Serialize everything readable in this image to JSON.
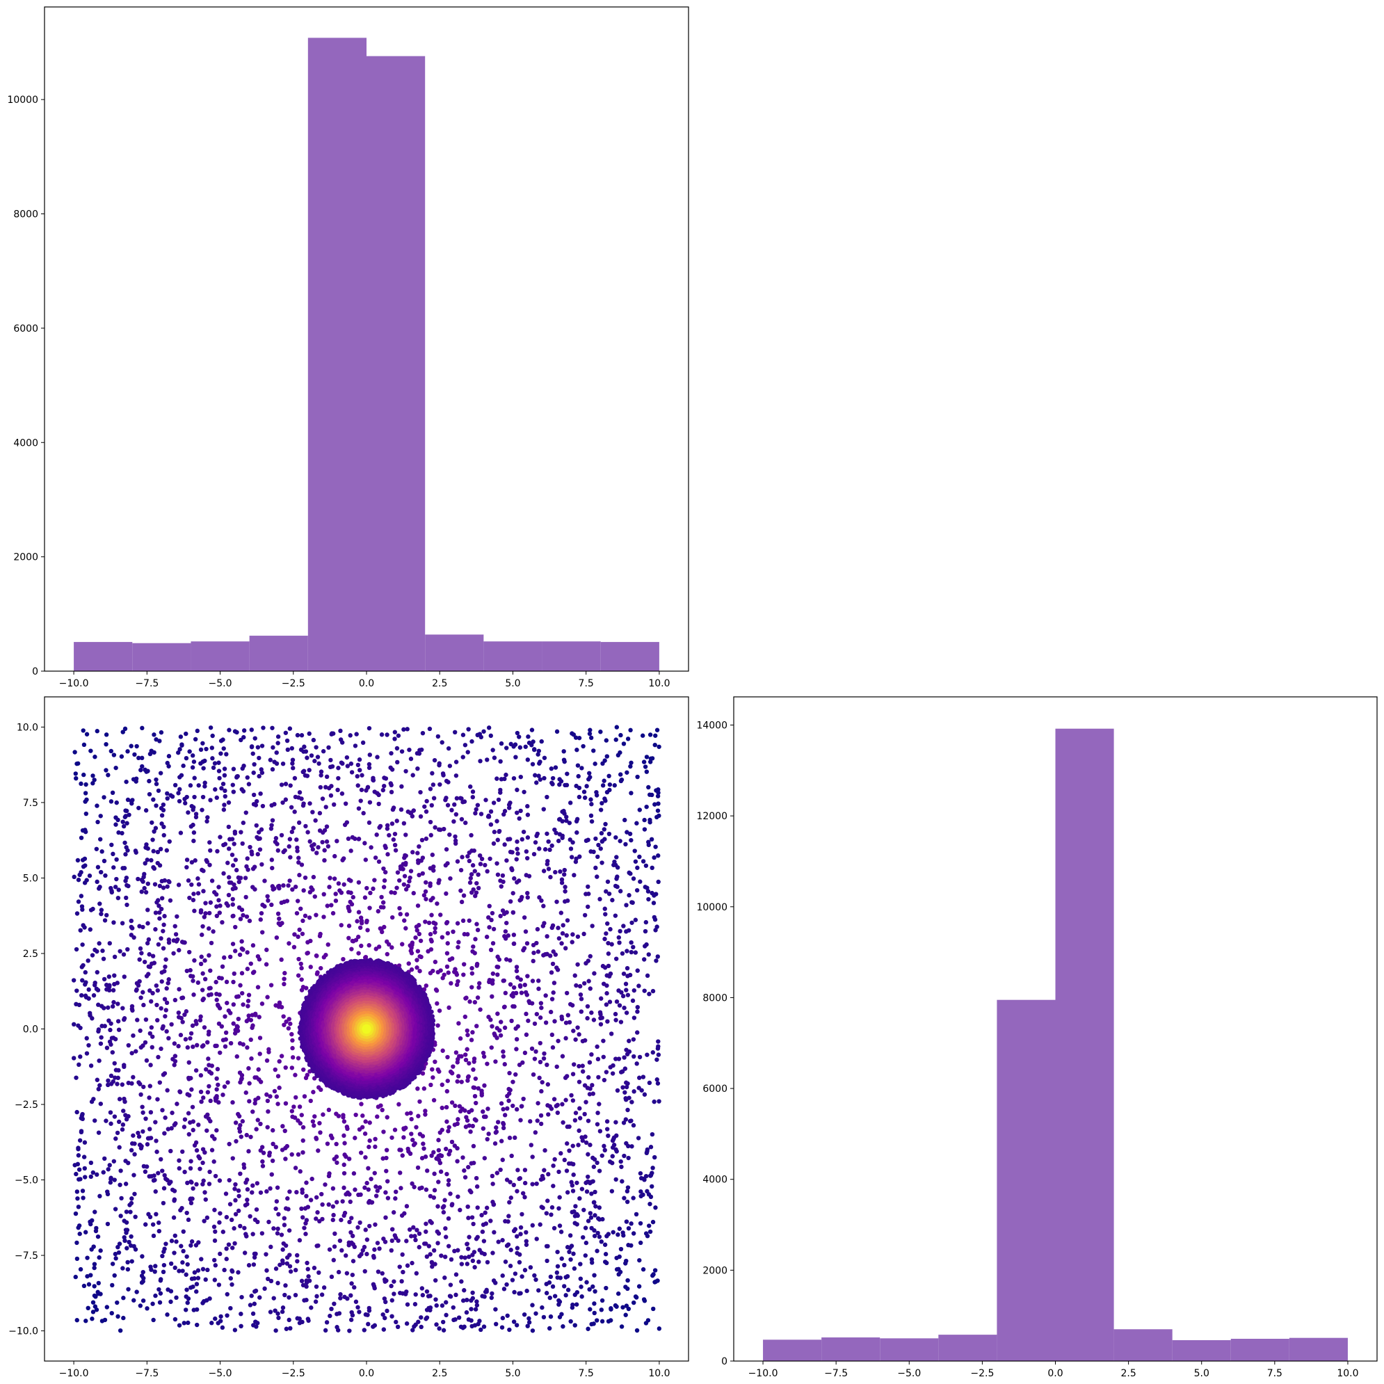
{
  "colors": {
    "bar": "#9467bd",
    "axis": "#000000"
  },
  "chart_data": [
    {
      "type": "bar",
      "panel": "top-left",
      "title": "",
      "xlabel": "",
      "ylabel": "",
      "bin_edges": [
        -10,
        -8,
        -6,
        -4,
        -2,
        0,
        2,
        4,
        6,
        8,
        10
      ],
      "values": [
        510,
        490,
        520,
        620,
        11080,
        10760,
        640,
        520,
        520,
        510
      ],
      "xlim": [
        -11,
        11
      ],
      "ylim": [
        0,
        11620
      ],
      "xticks": [
        -10,
        -7.5,
        -5,
        -2.5,
        0,
        2.5,
        5,
        7.5,
        10
      ],
      "xtick_labels": [
        "−10.0",
        "−7.5",
        "−5.0",
        "−2.5",
        "0.0",
        "2.5",
        "5.0",
        "7.5",
        "10.0"
      ],
      "yticks": [
        0,
        2000,
        4000,
        6000,
        8000,
        10000
      ],
      "ytick_labels": [
        "0",
        "2000",
        "4000",
        "6000",
        "8000",
        "10000"
      ]
    },
    {
      "type": "scatter",
      "panel": "bottom-left",
      "title": "",
      "xlabel": "",
      "ylabel": "",
      "colormap": "plasma",
      "uniform_points": {
        "count": 4000,
        "x_range": [
          -10,
          10
        ],
        "y_range": [
          -10,
          10
        ]
      },
      "cluster": {
        "center": [
          0,
          0
        ],
        "radius": 2.3
      },
      "xlim": [
        -11,
        11
      ],
      "ylim": [
        -11,
        11
      ],
      "xticks": [
        -10,
        -7.5,
        -5,
        -2.5,
        0,
        2.5,
        5,
        7.5,
        10
      ],
      "xtick_labels": [
        "−10.0",
        "−7.5",
        "−5.0",
        "−2.5",
        "0.0",
        "2.5",
        "5.0",
        "7.5",
        "10.0"
      ],
      "yticks": [
        -10,
        -7.5,
        -5,
        -2.5,
        0,
        2.5,
        5,
        7.5,
        10
      ],
      "ytick_labels": [
        "−10.0",
        "−7.5",
        "−5.0",
        "−2.5",
        "0.0",
        "2.5",
        "5.0",
        "7.5",
        "10.0"
      ]
    },
    {
      "type": "bar",
      "panel": "bottom-right",
      "title": "",
      "xlabel": "",
      "ylabel": "",
      "bin_edges": [
        -10,
        -8,
        -6,
        -4,
        -2,
        0,
        2,
        4,
        6,
        8,
        10
      ],
      "values": [
        470,
        520,
        500,
        580,
        7950,
        13920,
        700,
        460,
        490,
        510
      ],
      "xlim": [
        -11,
        11
      ],
      "ylim": [
        0,
        14620
      ],
      "xticks": [
        -10,
        -7.5,
        -5,
        -2.5,
        0,
        2.5,
        5,
        7.5,
        10
      ],
      "xtick_labels": [
        "−10.0",
        "−7.5",
        "−5.0",
        "−2.5",
        "0.0",
        "2.5",
        "5.0",
        "7.5",
        "10.0"
      ],
      "yticks": [
        0,
        2000,
        4000,
        6000,
        8000,
        10000,
        12000,
        14000
      ],
      "ytick_labels": [
        "0",
        "2000",
        "4000",
        "6000",
        "8000",
        "10000",
        "12000",
        "14000"
      ]
    }
  ]
}
